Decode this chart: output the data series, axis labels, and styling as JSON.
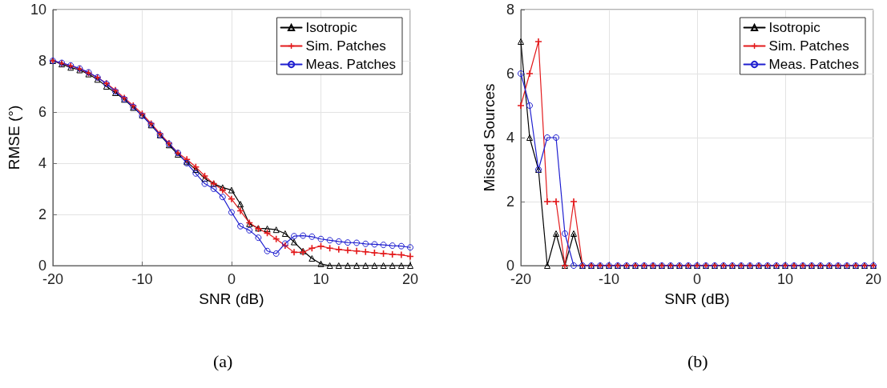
{
  "chart_data": [
    {
      "type": "line",
      "xlabel": "SNR (dB)",
      "ylabel": "RMSE (°)",
      "annotations": [
        "(a)"
      ],
      "x": [
        -20,
        -19,
        -18,
        -17,
        -16,
        -15,
        -14,
        -13,
        -12,
        -11,
        -10,
        -9,
        -8,
        -7,
        -6,
        -5,
        -4,
        -3,
        -2,
        -1,
        0,
        1,
        2,
        3,
        4,
        5,
        6,
        7,
        8,
        9,
        10,
        11,
        12,
        13,
        14,
        15,
        16,
        17,
        18,
        19,
        20
      ],
      "xlim": [
        -20,
        20
      ],
      "xticks": [
        -20,
        -10,
        0,
        10,
        20
      ],
      "ylim": [
        0,
        10
      ],
      "yticks": [
        0,
        2,
        4,
        6,
        8,
        10
      ],
      "grid": true,
      "legend": "top right",
      "line_style": "solid",
      "series": [
        {
          "name": "Isotropic",
          "color": "#000000",
          "marker": "triangle",
          "values": [
            8.0,
            7.87,
            7.74,
            7.64,
            7.48,
            7.27,
            7.0,
            6.75,
            6.49,
            6.17,
            5.88,
            5.49,
            5.1,
            4.71,
            4.34,
            4.05,
            3.75,
            3.4,
            3.2,
            3.05,
            2.95,
            2.4,
            1.63,
            1.46,
            1.44,
            1.4,
            1.25,
            0.92,
            0.57,
            0.28,
            0.07,
            0,
            0,
            0,
            0,
            0,
            0,
            0,
            0,
            0,
            0
          ]
        },
        {
          "name": "Sim. Patches",
          "color": "#e31a1c",
          "marker": "cross",
          "values": [
            8.0,
            7.9,
            7.8,
            7.68,
            7.52,
            7.35,
            7.12,
            6.85,
            6.55,
            6.25,
            5.93,
            5.55,
            5.15,
            4.78,
            4.4,
            4.15,
            3.85,
            3.5,
            3.2,
            2.95,
            2.6,
            2.14,
            1.67,
            1.44,
            1.27,
            1.04,
            0.78,
            0.52,
            0.52,
            0.68,
            0.76,
            0.68,
            0.63,
            0.6,
            0.57,
            0.54,
            0.5,
            0.47,
            0.44,
            0.42,
            0.36
          ]
        },
        {
          "name": "Meas. Patches",
          "color": "#1f1fd0",
          "marker": "circle",
          "values": [
            8.0,
            7.92,
            7.82,
            7.7,
            7.55,
            7.35,
            7.1,
            6.8,
            6.5,
            6.2,
            5.85,
            5.5,
            5.1,
            4.75,
            4.4,
            4.0,
            3.6,
            3.2,
            3.0,
            2.68,
            2.08,
            1.54,
            1.38,
            1.09,
            0.57,
            0.47,
            0.86,
            1.15,
            1.17,
            1.13,
            1.04,
            0.99,
            0.94,
            0.9,
            0.89,
            0.85,
            0.83,
            0.81,
            0.78,
            0.76,
            0.71
          ]
        }
      ]
    },
    {
      "type": "line",
      "xlabel": "SNR (dB)",
      "ylabel": "Missed Sources",
      "annotations": [
        "(b)"
      ],
      "x": [
        -20,
        -19,
        -18,
        -17,
        -16,
        -15,
        -14,
        -13,
        -12,
        -11,
        -10,
        -9,
        -8,
        -7,
        -6,
        -5,
        -4,
        -3,
        -2,
        -1,
        0,
        1,
        2,
        3,
        4,
        5,
        6,
        7,
        8,
        9,
        10,
        11,
        12,
        13,
        14,
        15,
        16,
        17,
        18,
        19,
        20
      ],
      "xlim": [
        -20,
        20
      ],
      "xticks": [
        -20,
        -10,
        0,
        10,
        20
      ],
      "ylim": [
        0,
        8
      ],
      "yticks": [
        0,
        2,
        4,
        6,
        8
      ],
      "grid": true,
      "legend": "top right",
      "line_style": "solid",
      "series": [
        {
          "name": "Isotropic",
          "color": "#000000",
          "marker": "triangle",
          "values": [
            7,
            4,
            3,
            0,
            1,
            0,
            1,
            0,
            0,
            0,
            0,
            0,
            0,
            0,
            0,
            0,
            0,
            0,
            0,
            0,
            0,
            0,
            0,
            0,
            0,
            0,
            0,
            0,
            0,
            0,
            0,
            0,
            0,
            0,
            0,
            0,
            0,
            0,
            0,
            0,
            0
          ]
        },
        {
          "name": "Sim. Patches",
          "color": "#e31a1c",
          "marker": "cross",
          "values": [
            5,
            6,
            7,
            2,
            2,
            0,
            2,
            0,
            0,
            0,
            0,
            0,
            0,
            0,
            0,
            0,
            0,
            0,
            0,
            0,
            0,
            0,
            0,
            0,
            0,
            0,
            0,
            0,
            0,
            0,
            0,
            0,
            0,
            0,
            0,
            0,
            0,
            0,
            0,
            0,
            0
          ]
        },
        {
          "name": "Meas. Patches",
          "color": "#1f1fd0",
          "marker": "circle",
          "values": [
            6,
            5,
            3,
            4,
            4,
            1,
            0,
            0,
            0,
            0,
            0,
            0,
            0,
            0,
            0,
            0,
            0,
            0,
            0,
            0,
            0,
            0,
            0,
            0,
            0,
            0,
            0,
            0,
            0,
            0,
            0,
            0,
            0,
            0,
            0,
            0,
            0,
            0,
            0,
            0,
            0
          ]
        }
      ]
    }
  ]
}
